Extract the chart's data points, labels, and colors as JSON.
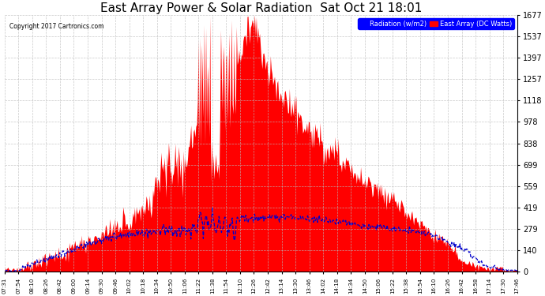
{
  "title": "East Array Power & Solar Radiation  Sat Oct 21 18:01",
  "copyright": "Copyright 2017 Cartronics.com",
  "legend_radiation": "Radiation (w/m2)",
  "legend_east_array": "East Array (DC Watts)",
  "y_max": 1676.6,
  "y_min": 0.0,
  "y_ticks": [
    0.0,
    139.7,
    279.4,
    419.1,
    558.9,
    698.6,
    838.3,
    978.0,
    1117.7,
    1257.4,
    1397.2,
    1536.9,
    1676.6
  ],
  "background_color": "#ffffff",
  "plot_bg_color": "#ffffff",
  "grid_color": "#bbbbbb",
  "fill_color": "#ff0000",
  "line_color": "#0000cc",
  "title_fontsize": 11,
  "x_labels": [
    "07:31",
    "07:54",
    "08:10",
    "08:26",
    "08:42",
    "09:00",
    "09:14",
    "09:30",
    "09:46",
    "10:02",
    "10:18",
    "10:34",
    "10:50",
    "11:06",
    "11:22",
    "11:38",
    "11:54",
    "12:10",
    "12:26",
    "12:42",
    "13:14",
    "13:30",
    "13:46",
    "14:02",
    "14:18",
    "14:34",
    "14:50",
    "15:06",
    "15:22",
    "15:38",
    "15:54",
    "16:10",
    "16:26",
    "16:42",
    "16:58",
    "17:14",
    "17:30",
    "17:46"
  ]
}
